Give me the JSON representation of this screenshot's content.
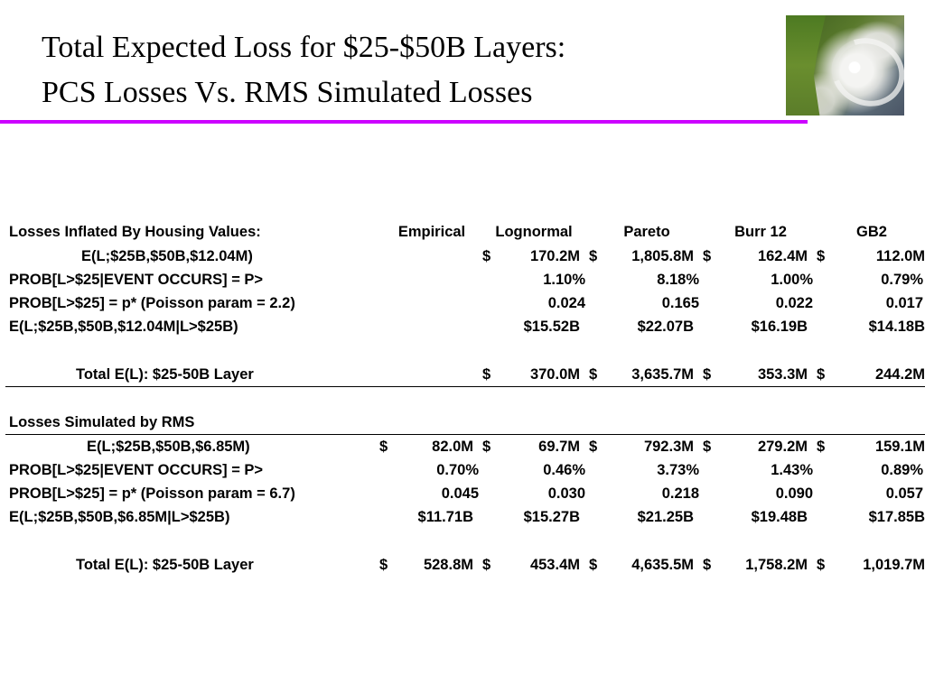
{
  "title": {
    "line1": "Total Expected Loss for $25-$50B Layers:",
    "line2": "PCS Losses Vs. RMS Simulated Losses"
  },
  "colors": {
    "rule": "#cc00ff",
    "text": "#000000",
    "background": "#ffffff"
  },
  "image": {
    "name": "hurricane-satellite-image"
  },
  "columns": [
    "Empirical",
    "Lognormal",
    "Pareto",
    "Burr 12",
    "GB2"
  ],
  "section1": {
    "heading": "Losses Inflated By Housing Values:",
    "rows": [
      {
        "label": "E(L;$25B,$50B,$12.04M)",
        "values": [
          [
            "",
            ""
          ],
          [
            "$",
            "170.2M"
          ],
          [
            "$",
            "1,805.8M"
          ],
          [
            "$",
            "162.4M"
          ],
          [
            "$",
            "112.0M"
          ]
        ]
      },
      {
        "label": "PROB[L>$25|EVENT OCCURS] = P>",
        "values": [
          [
            "",
            ""
          ],
          [
            "",
            "1.10%"
          ],
          [
            "",
            "8.18%"
          ],
          [
            "",
            "1.00%"
          ],
          [
            "",
            "0.79%"
          ]
        ]
      },
      {
        "label": "PROB[L>$25] = p* (Poisson param = 2.2)",
        "values": [
          [
            "",
            ""
          ],
          [
            "",
            "0.024"
          ],
          [
            "",
            "0.165"
          ],
          [
            "",
            "0.022"
          ],
          [
            "",
            "0.017"
          ]
        ]
      },
      {
        "label": "E(L;$25B,$50B,$12.04M|L>$25B)",
        "values": [
          [
            "",
            ""
          ],
          [
            "",
            "$15.52B"
          ],
          [
            "",
            "$22.07B"
          ],
          [
            "",
            "$16.19B"
          ],
          [
            "",
            "$14.18B"
          ]
        ]
      }
    ],
    "total": {
      "label": "Total E(L): $25-50B Layer",
      "values": [
        [
          "",
          ""
        ],
        [
          "$",
          "370.0M"
        ],
        [
          "$",
          "3,635.7M"
        ],
        [
          "$",
          "353.3M"
        ],
        [
          "$",
          "244.2M"
        ]
      ]
    }
  },
  "section2": {
    "heading": "Losses Simulated by RMS",
    "rows": [
      {
        "label": "E(L;$25B,$50B,$6.85M)",
        "values": [
          [
            "$",
            "82.0M"
          ],
          [
            "$",
            "69.7M"
          ],
          [
            "$",
            "792.3M"
          ],
          [
            "$",
            "279.2M"
          ],
          [
            "$",
            "159.1M"
          ]
        ]
      },
      {
        "label": "PROB[L>$25|EVENT OCCURS] = P>",
        "values": [
          [
            "",
            "0.70%"
          ],
          [
            "",
            "0.46%"
          ],
          [
            "",
            "3.73%"
          ],
          [
            "",
            "1.43%"
          ],
          [
            "",
            "0.89%"
          ]
        ]
      },
      {
        "label": "PROB[L>$25] = p* (Poisson param = 6.7)",
        "values": [
          [
            "",
            "0.045"
          ],
          [
            "",
            "0.030"
          ],
          [
            "",
            "0.218"
          ],
          [
            "",
            "0.090"
          ],
          [
            "",
            "0.057"
          ]
        ]
      },
      {
        "label": "E(L;$25B,$50B,$6.85M|L>$25B)",
        "values": [
          [
            "",
            "$11.71B"
          ],
          [
            "",
            "$15.27B"
          ],
          [
            "",
            "$21.25B"
          ],
          [
            "",
            "$19.48B"
          ],
          [
            "",
            "$17.85B"
          ]
        ]
      }
    ],
    "total": {
      "label": "Total E(L): $25-50B Layer",
      "values": [
        [
          "$",
          "528.8M"
        ],
        [
          "$",
          "453.4M"
        ],
        [
          "$",
          "4,635.5M"
        ],
        [
          "$",
          "1,758.2M"
        ],
        [
          "$",
          "1,019.7M"
        ]
      ]
    }
  }
}
